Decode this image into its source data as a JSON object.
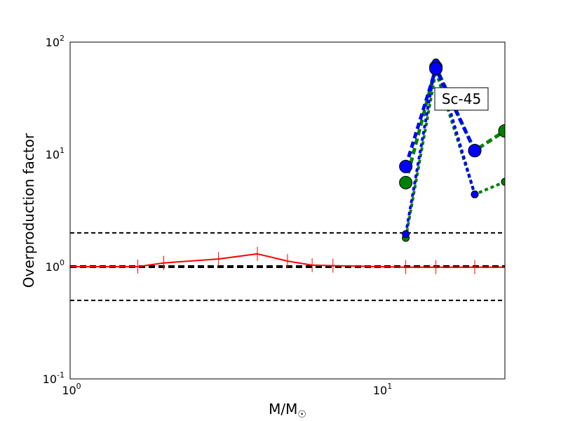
{
  "chart_data": {
    "type": "line",
    "xlabel": "M/M",
    "xlabel_subscript": "☉",
    "ylabel": "Overproduction factor",
    "xscale": "log",
    "yscale": "log",
    "xlim": [
      1,
      25
    ],
    "ylim": [
      0.1,
      100
    ],
    "xticks": [
      {
        "value": 1,
        "base": "10",
        "exp": "0"
      },
      {
        "value": 10,
        "base": "10",
        "exp": "1"
      }
    ],
    "yticks": [
      {
        "value": 0.1,
        "base": "10",
        "exp": "-1"
      },
      {
        "value": 1,
        "base": "10",
        "exp": "0"
      },
      {
        "value": 10,
        "base": "10",
        "exp": "1"
      },
      {
        "value": 100,
        "base": "10",
        "exp": "2"
      }
    ],
    "reference_lines": [
      {
        "y": 2,
        "color": "#000000",
        "style": "dashed",
        "weight": "thin"
      },
      {
        "y": 1,
        "color": "#000000",
        "style": "dashed",
        "weight": "thick"
      },
      {
        "y": 0.5,
        "color": "#000000",
        "style": "dashed",
        "weight": "thin"
      }
    ],
    "series": [
      {
        "color": "#ff0000",
        "style": "solid",
        "marker": "vline",
        "x": [
          1,
          1.65,
          2,
          3,
          4,
          5,
          6,
          7,
          12,
          15,
          20,
          25
        ],
        "y": [
          1.0,
          1.0,
          1.08,
          1.17,
          1.3,
          1.12,
          1.03,
          1.02,
          0.99,
          0.99,
          0.99,
          0.99
        ]
      },
      {
        "color": "#008000",
        "style": "dotted",
        "marker": "circle-small",
        "x": [
          12,
          15,
          20,
          25
        ],
        "y": [
          1.8,
          55,
          4.4,
          5.7
        ]
      },
      {
        "color": "#008000",
        "style": "dotted",
        "marker": "circle-large",
        "x": [
          12,
          15,
          20,
          25
        ],
        "y": [
          5.6,
          60,
          10.8,
          16.2
        ]
      },
      {
        "color": "#0000ff",
        "style": "dotted",
        "marker": "circle-small",
        "x": [
          12,
          15,
          20
        ],
        "y": [
          1.95,
          66,
          4.4
        ]
      },
      {
        "color": "#0000ff",
        "style": "dotted",
        "marker": "circle-large",
        "x": [
          12,
          15,
          20
        ],
        "y": [
          7.8,
          58,
          10.8
        ]
      }
    ],
    "annotation": {
      "text": "Sc-45",
      "location": "upper-right"
    },
    "grid": false
  }
}
